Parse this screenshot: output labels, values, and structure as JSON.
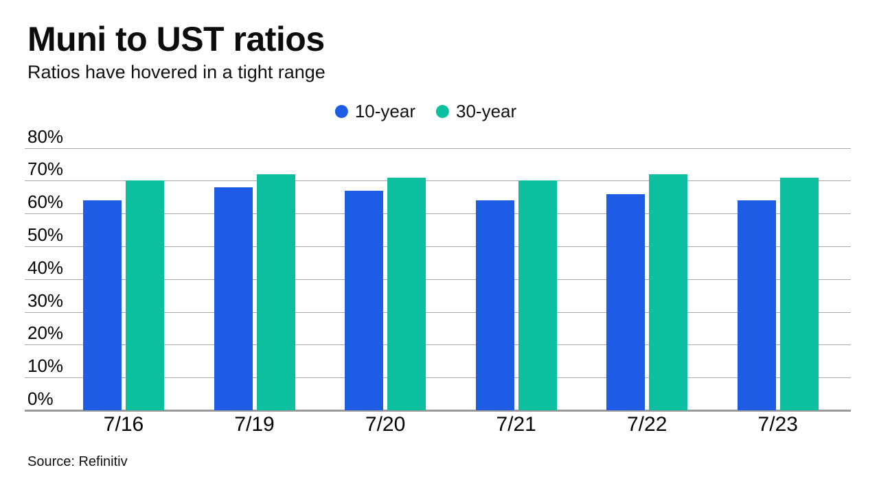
{
  "page": {
    "background": "#ffffff",
    "text_color": "#111111"
  },
  "header": {
    "title": "Muni to UST ratios",
    "subtitle": "Ratios have hovered in a tight range"
  },
  "legend": {
    "items": [
      {
        "label": "10-year",
        "color": "#1e5ce6"
      },
      {
        "label": "30-year",
        "color": "#0cbf9f"
      }
    ]
  },
  "source": {
    "text": "Source: Refinitiv"
  },
  "axis": {
    "y_ticks": [
      "0%",
      "10%",
      "20%",
      "30%",
      "40%",
      "50%",
      "60%",
      "70%",
      "80%"
    ],
    "gridline_color": "#a9a9a9",
    "baseline_color": "#999999"
  },
  "chart_data": {
    "type": "bar",
    "title": "Muni to UST ratios",
    "subtitle": "Ratios have hovered in a tight range",
    "categories": [
      "7/16",
      "7/19",
      "7/20",
      "7/21",
      "7/22",
      "7/23"
    ],
    "series": [
      {
        "name": "10-year",
        "color": "#1e5ce6",
        "values": [
          64,
          68,
          67,
          64,
          66,
          64
        ]
      },
      {
        "name": "30-year",
        "color": "#0cbf9f",
        "values": [
          70,
          72,
          71,
          70,
          72,
          71
        ]
      }
    ],
    "xlabel": "",
    "ylabel": "",
    "ylim": [
      0,
      80
    ],
    "ytick_step": 10,
    "ytick_format": "percent",
    "grid": true,
    "legend_position": "top-center",
    "source": "Source: Refinitiv"
  }
}
